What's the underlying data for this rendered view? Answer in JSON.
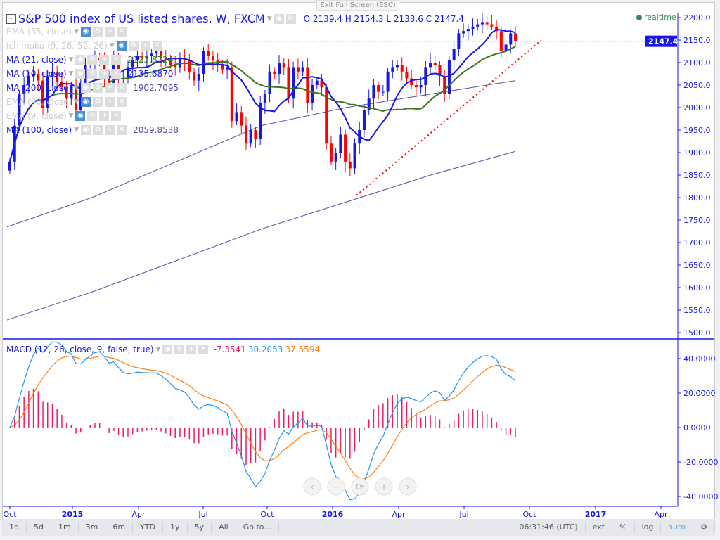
{
  "header": {
    "title": "S&P 500 index of US listed shares, W, FXCM",
    "ohlc": "O 2139.4 H 2154.3 L 2133.6 C 2147.4",
    "exit_fullscreen": "Exit Full Screen (ESC)",
    "realtime": "realtime"
  },
  "indicators": [
    {
      "label": "EMA (55, close)",
      "value": "",
      "faded": true
    },
    {
      "label": "Ichimoku (9, 26, 52, 26)",
      "value": "",
      "faded": true
    },
    {
      "label": "MA (21, close)",
      "value": "2123.8724",
      "faded": false,
      "color": "#3a7a1a"
    },
    {
      "label": "MA (10, close)",
      "value": "2135.6870",
      "faded": false,
      "color": "#1717e6"
    },
    {
      "label": "MA (200, close)",
      "value": "1902.7095",
      "faded": false,
      "color": "#5a4ab0"
    },
    {
      "label": "EMA (90, close)",
      "value": "",
      "faded": true
    },
    {
      "label": "EMA (9, close)",
      "value": "",
      "faded": true
    },
    {
      "label": "MA (100, close)",
      "value": "2059.8538",
      "faded": false,
      "color": "#5a4ab0"
    }
  ],
  "macd": {
    "label": "MACD (12, 26, close, 9, false, true)",
    "hist": "-7.3541",
    "macd": "30.2053",
    "signal": "37.5594"
  },
  "price_axis": {
    "ticks": [
      "2200.0",
      "2150.0",
      "2100.0",
      "2050.0",
      "2000.0",
      "1950.0",
      "1900.0",
      "1850.0",
      "1800.0",
      "1750.0",
      "1700.0",
      "1650.0",
      "1600.0",
      "1550.0",
      "1500.0"
    ],
    "last": "2147.4"
  },
  "macd_axis": {
    "ticks": [
      "40.0000",
      "20.0000",
      "0.0000",
      "-20.0000",
      "-40.0000"
    ]
  },
  "time_axis": [
    "Oct",
    "2015",
    "Apr",
    "Jul",
    "Oct",
    "2016",
    "Apr",
    "Jul",
    "Oct",
    "2017",
    "Apr"
  ],
  "toolbar": {
    "ranges": [
      "1d",
      "5d",
      "1m",
      "3m",
      "6m",
      "YTD",
      "1y",
      "5y",
      "All",
      "Go to..."
    ],
    "clock": "06:31:46 (UTC)",
    "options": [
      "ext",
      "%",
      "log",
      "auto"
    ]
  },
  "colors": {
    "up": "#1717e6",
    "down": "#ff0000",
    "ma10": "#1717e6",
    "ma21": "#3a7a1a",
    "ma_long": "#5a4ab0",
    "macd": "#2196f3",
    "signal": "#ff7f0e",
    "hist": "#e91e63"
  },
  "chart_data": {
    "type": "candlestick",
    "closes": [
      1880,
      1960,
      2030,
      2050,
      2070,
      2075,
      2060,
      2000,
      2070,
      2080,
      2058,
      2045,
      2020,
      2050,
      1995,
      2055,
      2095,
      2100,
      2110,
      2105,
      2070,
      2055,
      2108,
      2065,
      2065,
      2090,
      2105,
      2115,
      2110,
      2115,
      2120,
      2125,
      2110,
      2105,
      2095,
      2090,
      2110,
      2105,
      2080,
      2060,
      2075,
      2125,
      2115,
      2105,
      2095,
      2085,
      2090,
      1970,
      1990,
      1960,
      1920,
      1950,
      1930,
      2010,
      2030,
      2080,
      2075,
      2100,
      2090,
      2020,
      2090,
      2080,
      2090,
      2010,
      2050,
      2060,
      2045,
      1920,
      1880,
      1900,
      1940,
      1880,
      1865,
      1920,
      1950,
      1995,
      2020,
      2050,
      2035,
      2035,
      2080,
      2090,
      2095,
      2080,
      2065,
      2050,
      2045,
      2050,
      2090,
      2100,
      2095,
      2070,
      2030,
      2105,
      2130,
      2165,
      2170,
      2175,
      2180,
      2185,
      2190,
      2185,
      2180,
      2170,
      2125,
      2140,
      2165,
      2147.4
    ],
    "ma100": [
      1735,
      1800,
      1880,
      1960,
      2000,
      2030,
      2060
    ],
    "ma200": [
      1528,
      1590,
      1660,
      1730,
      1790,
      1850,
      1902.7
    ],
    "ylim": [
      1500,
      2200
    ],
    "macd_ylim": [
      -40,
      40
    ]
  }
}
